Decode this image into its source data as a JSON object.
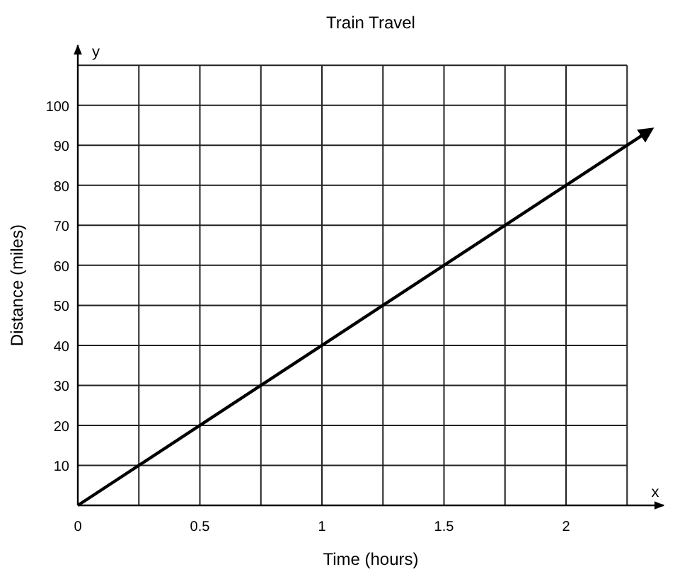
{
  "chart_data": {
    "type": "line",
    "title": "Train Travel",
    "xlabel": "Time (hours)",
    "ylabel": "Distance (miles)",
    "annotations": [
      "x",
      "y"
    ],
    "series": [
      {
        "color": "#000000",
        "x": [
          0,
          2.35
        ],
        "values": [
          0,
          94
        ]
      }
    ],
    "xlim": [
      0,
      2.4
    ],
    "ylim": [
      0,
      115
    ],
    "xticks": [
      0,
      {
        "value": 0.25,
        "label": null
      },
      0.5,
      {
        "value": 0.75,
        "label": null
      },
      1,
      {
        "value": 1.25,
        "label": null
      },
      1.5,
      {
        "value": 1.75,
        "label": null
      },
      2,
      {
        "value": 2.25,
        "label": null
      }
    ],
    "yticks": [
      {
        "value": 0,
        "label": null
      },
      10,
      20,
      30,
      40,
      50,
      60,
      70,
      80,
      90,
      100,
      {
        "value": 110,
        "label": null
      }
    ],
    "grid": true,
    "marker": "none",
    "line_style": "solid"
  }
}
